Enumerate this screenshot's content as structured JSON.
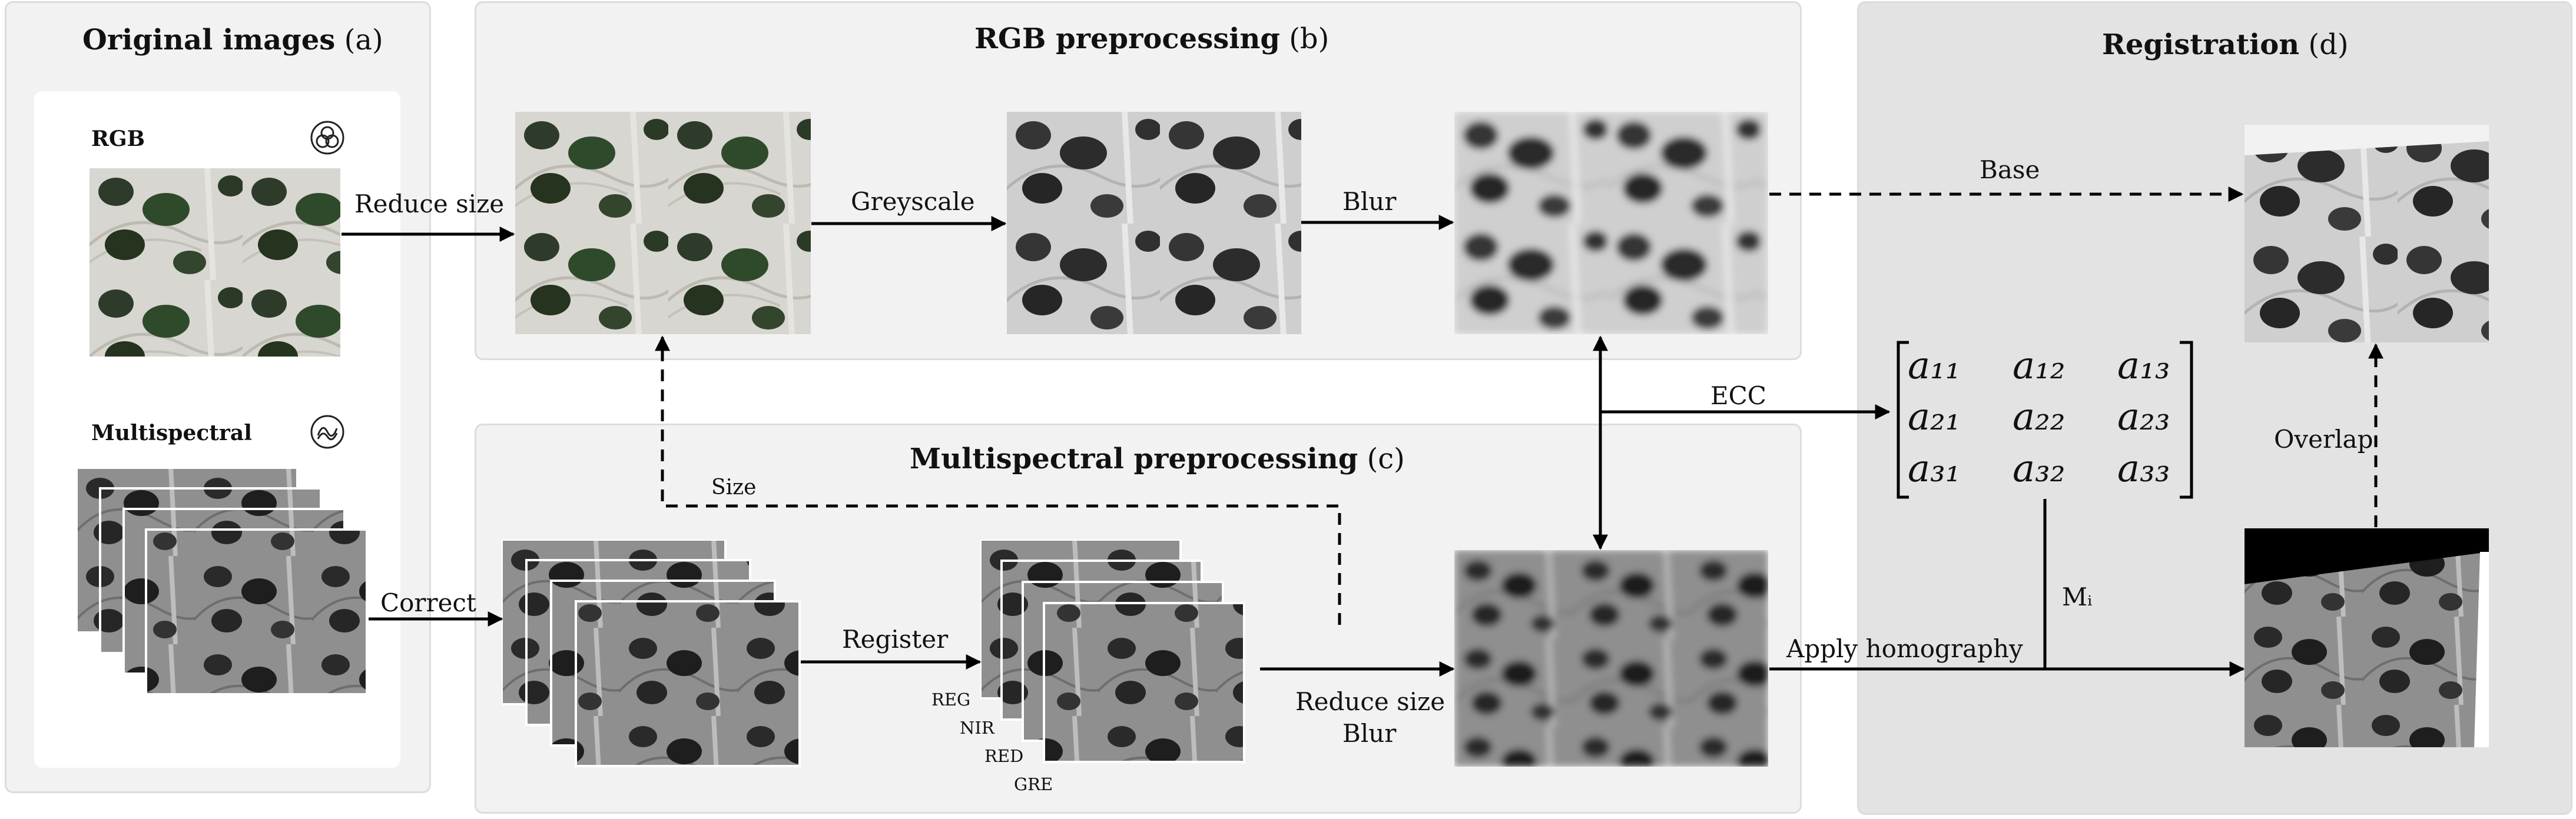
{
  "panels": {
    "original": {
      "title": "Original images",
      "tag": "(a)"
    },
    "rgb": {
      "title": "RGB preprocessing",
      "tag": "(b)"
    },
    "multi": {
      "title": "Multispectral preprocessing",
      "tag": "(c)"
    },
    "registration": {
      "title": "Registration",
      "tag": "(d)"
    }
  },
  "inputs": {
    "rgb_label": "RGB",
    "multi_label": "Multispectral"
  },
  "steps": {
    "reduce_size": "Reduce size",
    "greyscale": "Greyscale",
    "blur": "Blur",
    "base": "Base",
    "correct": "Correct",
    "register": "Register",
    "size": "Size",
    "reduce_size_blur_1": "Reduce size",
    "reduce_size_blur_2": "Blur",
    "ecc": "ECC",
    "apply_homography": "Apply homography",
    "overlap": "Overlap",
    "mi": "Mᵢ"
  },
  "bands": [
    "REG",
    "NIR",
    "RED",
    "GRE"
  ],
  "matrix": [
    [
      "a₁₁",
      "a₁₂",
      "a₁₃"
    ],
    [
      "a₂₁",
      "a₂₂",
      "a₂₃"
    ],
    [
      "a₃₁",
      "a₃₂",
      "a₃₃"
    ]
  ],
  "colors": {
    "panel_light": "#f2f2f2",
    "panel_dark": "#e3e3e3",
    "arrow": "#000000"
  }
}
